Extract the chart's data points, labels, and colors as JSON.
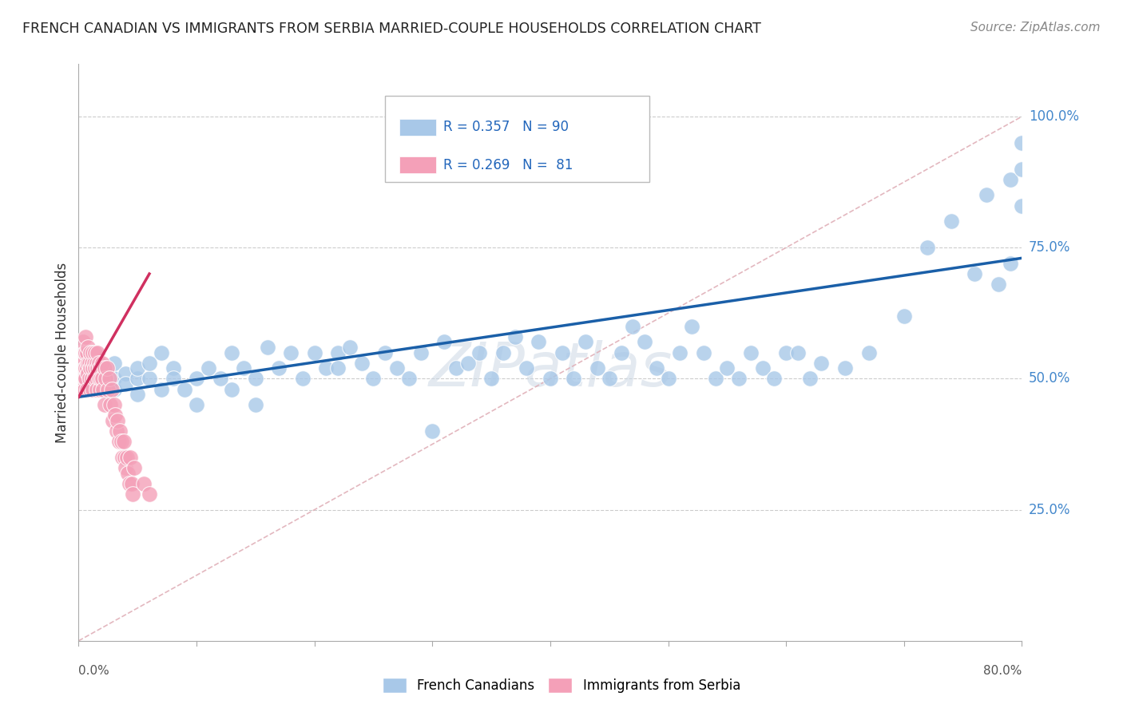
{
  "title": "FRENCH CANADIAN VS IMMIGRANTS FROM SERBIA MARRIED-COUPLE HOUSEHOLDS CORRELATION CHART",
  "source": "Source: ZipAtlas.com",
  "ylabel": "Married-couple Households",
  "ytick_labels": [
    "25.0%",
    "50.0%",
    "75.0%",
    "100.0%"
  ],
  "ytick_vals": [
    0.25,
    0.5,
    0.75,
    1.0
  ],
  "xmin": 0.0,
  "xmax": 0.8,
  "ymin": 0.0,
  "ymax": 1.1,
  "blue_R": 0.357,
  "blue_N": 90,
  "pink_R": 0.269,
  "pink_N": 81,
  "blue_color": "#a8c8e8",
  "pink_color": "#f4a0b8",
  "blue_line_color": "#1a5fa8",
  "pink_line_color": "#d03060",
  "ref_line_color": "#e0b0b8",
  "legend_label_blue": "French Canadians",
  "legend_label_pink": "Immigrants from Serbia",
  "blue_scatter_x": [
    0.01,
    0.01,
    0.02,
    0.02,
    0.03,
    0.03,
    0.03,
    0.04,
    0.04,
    0.05,
    0.05,
    0.05,
    0.06,
    0.06,
    0.07,
    0.07,
    0.08,
    0.08,
    0.09,
    0.1,
    0.1,
    0.11,
    0.12,
    0.13,
    0.13,
    0.14,
    0.15,
    0.15,
    0.16,
    0.17,
    0.18,
    0.19,
    0.2,
    0.21,
    0.22,
    0.22,
    0.23,
    0.24,
    0.25,
    0.26,
    0.27,
    0.28,
    0.29,
    0.3,
    0.31,
    0.32,
    0.33,
    0.34,
    0.35,
    0.36,
    0.37,
    0.38,
    0.39,
    0.4,
    0.41,
    0.42,
    0.43,
    0.44,
    0.45,
    0.46,
    0.47,
    0.48,
    0.49,
    0.5,
    0.51,
    0.52,
    0.53,
    0.54,
    0.55,
    0.56,
    0.57,
    0.58,
    0.59,
    0.6,
    0.61,
    0.62,
    0.63,
    0.65,
    0.67,
    0.7,
    0.72,
    0.74,
    0.76,
    0.77,
    0.78,
    0.79,
    0.79,
    0.8,
    0.8,
    0.8
  ],
  "blue_scatter_y": [
    0.5,
    0.48,
    0.52,
    0.5,
    0.5,
    0.48,
    0.53,
    0.51,
    0.49,
    0.5,
    0.52,
    0.47,
    0.5,
    0.53,
    0.55,
    0.48,
    0.52,
    0.5,
    0.48,
    0.45,
    0.5,
    0.52,
    0.5,
    0.55,
    0.48,
    0.52,
    0.5,
    0.45,
    0.56,
    0.52,
    0.55,
    0.5,
    0.55,
    0.52,
    0.55,
    0.52,
    0.56,
    0.53,
    0.5,
    0.55,
    0.52,
    0.5,
    0.55,
    0.4,
    0.57,
    0.52,
    0.53,
    0.55,
    0.5,
    0.55,
    0.58,
    0.52,
    0.57,
    0.5,
    0.55,
    0.5,
    0.57,
    0.52,
    0.5,
    0.55,
    0.6,
    0.57,
    0.52,
    0.5,
    0.55,
    0.6,
    0.55,
    0.5,
    0.52,
    0.5,
    0.55,
    0.52,
    0.5,
    0.55,
    0.55,
    0.5,
    0.53,
    0.52,
    0.55,
    0.62,
    0.75,
    0.8,
    0.7,
    0.85,
    0.68,
    0.88,
    0.72,
    0.9,
    0.83,
    0.95
  ],
  "pink_scatter_x": [
    0.001,
    0.001,
    0.002,
    0.002,
    0.002,
    0.003,
    0.003,
    0.003,
    0.004,
    0.004,
    0.004,
    0.005,
    0.005,
    0.005,
    0.005,
    0.006,
    0.006,
    0.006,
    0.006,
    0.007,
    0.007,
    0.007,
    0.008,
    0.008,
    0.008,
    0.009,
    0.009,
    0.01,
    0.01,
    0.01,
    0.011,
    0.011,
    0.012,
    0.012,
    0.012,
    0.013,
    0.013,
    0.014,
    0.014,
    0.015,
    0.015,
    0.015,
    0.016,
    0.016,
    0.017,
    0.017,
    0.018,
    0.018,
    0.019,
    0.02,
    0.02,
    0.021,
    0.022,
    0.022,
    0.023,
    0.024,
    0.025,
    0.026,
    0.027,
    0.028,
    0.029,
    0.03,
    0.031,
    0.032,
    0.033,
    0.034,
    0.035,
    0.036,
    0.037,
    0.038,
    0.039,
    0.04,
    0.041,
    0.042,
    0.043,
    0.044,
    0.045,
    0.046,
    0.047,
    0.055,
    0.06
  ],
  "pink_scatter_y": [
    0.52,
    0.5,
    0.55,
    0.53,
    0.48,
    0.52,
    0.55,
    0.5,
    0.53,
    0.51,
    0.57,
    0.55,
    0.52,
    0.5,
    0.48,
    0.55,
    0.52,
    0.58,
    0.5,
    0.55,
    0.52,
    0.48,
    0.53,
    0.51,
    0.56,
    0.53,
    0.5,
    0.55,
    0.52,
    0.48,
    0.53,
    0.5,
    0.55,
    0.52,
    0.48,
    0.53,
    0.5,
    0.55,
    0.52,
    0.53,
    0.5,
    0.48,
    0.52,
    0.55,
    0.5,
    0.53,
    0.52,
    0.48,
    0.5,
    0.53,
    0.5,
    0.48,
    0.52,
    0.45,
    0.5,
    0.52,
    0.48,
    0.5,
    0.45,
    0.48,
    0.42,
    0.45,
    0.43,
    0.4,
    0.42,
    0.38,
    0.4,
    0.38,
    0.35,
    0.38,
    0.35,
    0.33,
    0.35,
    0.32,
    0.3,
    0.35,
    0.3,
    0.28,
    0.33,
    0.3,
    0.28
  ],
  "blue_line_x": [
    0.0,
    0.8
  ],
  "blue_line_y": [
    0.465,
    0.73
  ],
  "pink_line_x": [
    0.0,
    0.06
  ],
  "pink_line_y": [
    0.465,
    0.7
  ],
  "ref_line_x": [
    0.0,
    0.8
  ],
  "ref_line_y": [
    0.0,
    1.0
  ]
}
